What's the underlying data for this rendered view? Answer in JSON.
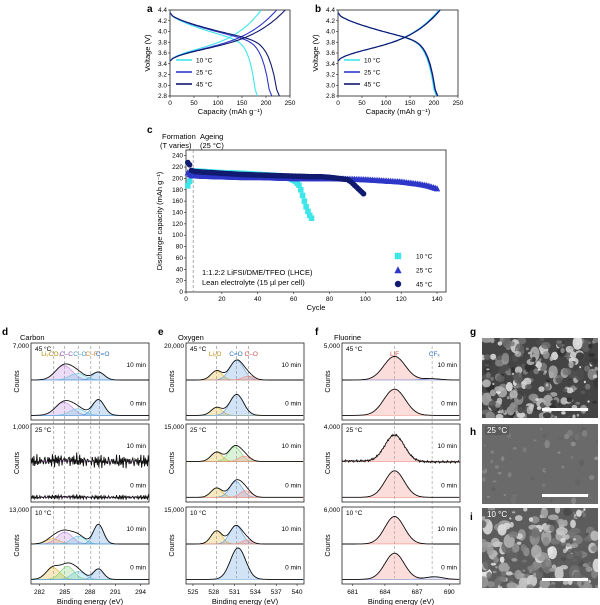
{
  "colors": {
    "c10": "#3ee6ea",
    "c25": "#2e36c8",
    "c45": "#101a6e",
    "lihsi": "#e0b020",
    "lif": "#f08a80",
    "cf": "#80a0e0",
    "co": "#6cc6e0",
    "ceqo": "#5a9ad8",
    "cc": "#c080e0",
    "dash": "#888888"
  },
  "panel_labels": {
    "a": "a",
    "b": "b",
    "c": "c",
    "d": "d",
    "e": "e",
    "f": "f",
    "g": "g",
    "h": "h",
    "i": "i"
  },
  "temps": {
    "t10": "10 °C",
    "t25": "25 °C",
    "t45": "45 °C"
  },
  "panel_c": {
    "formation": "Formation",
    "formation_sub": "(T varies)",
    "ageing": "Ageing",
    "ageing_sub": "(25 °C)",
    "note1": "1:1.2:2 LiFSI/DME/TFEO (LHCE)",
    "note2": "Lean electrolyte (15 µl per cell)"
  },
  "xps": {
    "carbon": "Carbon",
    "oxygen": "Oxygen",
    "fluorine": "Fluorine",
    "t10min": "10 min",
    "t0min": "0 min",
    "xlabel": "Binding energy (eV)",
    "ylabel": "Counts",
    "carbon_peaks": {
      "li2co3": "Li₂CO₃",
      "cc": "C–C",
      "co": "C–O",
      "cf": "C–F",
      "ceqo": "C=O"
    },
    "oxygen_peaks": {
      "li2o": "Li₂O",
      "ceqo": "C=O",
      "co": "C–O"
    },
    "fluorine_peaks": {
      "lif": "LiF",
      "cfx": "CFₓ"
    },
    "carbon_max": [
      "7,000",
      "1,000",
      "13,000"
    ],
    "oxygen_max": [
      "20,000",
      "15,000",
      "15,000"
    ],
    "fluorine_max": [
      "5,000",
      "4,000",
      "6,000"
    ]
  },
  "sem": {
    "h": "25 °C",
    "i": "10 °C"
  },
  "chart_data": [
    {
      "panel": "a",
      "type": "line",
      "xlabel": "Capacity (mAh g⁻¹)",
      "ylabel": "Voltage (V)",
      "xlim": [
        0,
        250
      ],
      "ylim": [
        2.8,
        4.4
      ],
      "xticks": [
        "0",
        "50",
        "100",
        "150",
        "200",
        "250"
      ],
      "yticks": [
        "2.8",
        "3.0",
        "3.2",
        "3.4",
        "3.6",
        "3.8",
        "4.0",
        "4.2",
        "4.4"
      ],
      "series": [
        {
          "name": "10 °C",
          "charge_end": 190,
          "discharge_end": 182
        },
        {
          "name": "25 °C",
          "charge_end": 222,
          "discharge_end": 212
        },
        {
          "name": "45 °C",
          "charge_end": 240,
          "discharge_end": 228
        }
      ]
    },
    {
      "panel": "b",
      "type": "line",
      "xlabel": "Capacity (mAh g⁻¹)",
      "ylabel": "Voltage (V)",
      "xlim": [
        0,
        250
      ],
      "ylim": [
        2.8,
        4.4
      ],
      "xticks": [
        "0",
        "50",
        "100",
        "150",
        "200",
        "250"
      ],
      "yticks": [
        "2.8",
        "3.0",
        "3.2",
        "3.4",
        "3.6",
        "3.8",
        "4.0",
        "4.2",
        "4.4"
      ],
      "series": [
        {
          "name": "10 °C",
          "charge_end": 210,
          "discharge_end": 205
        },
        {
          "name": "25 °C",
          "charge_end": 212,
          "discharge_end": 207
        },
        {
          "name": "45 °C",
          "charge_end": 213,
          "discharge_end": 208
        }
      ]
    },
    {
      "panel": "c",
      "type": "scatter",
      "xlabel": "Cycle",
      "ylabel": "Discharge capacity (mAh g⁻¹)",
      "xlim": [
        0,
        145
      ],
      "ylim": [
        0,
        250
      ],
      "xticks": [
        "0",
        "20",
        "40",
        "60",
        "80",
        "100",
        "120",
        "140"
      ],
      "yticks": [
        "0",
        "20",
        "40",
        "60",
        "80",
        "100",
        "120",
        "140",
        "160",
        "180",
        "200",
        "220",
        "240"
      ],
      "series": [
        {
          "name": "10 °C",
          "x": [
            1,
            2,
            3,
            5,
            10,
            20,
            30,
            40,
            50,
            55,
            58,
            61,
            63,
            64,
            65,
            66,
            67,
            68,
            69,
            70
          ],
          "y": [
            187,
            195,
            208,
            213,
            212,
            210,
            209,
            207,
            205,
            203,
            200,
            195,
            188,
            180,
            170,
            160,
            150,
            142,
            135,
            130
          ]
        },
        {
          "name": "25 °C",
          "x": [
            1,
            2,
            3,
            5,
            10,
            20,
            30,
            40,
            50,
            60,
            70,
            80,
            90,
            100,
            110,
            120,
            130,
            135,
            138,
            140
          ],
          "y": [
            210,
            207,
            205,
            205,
            204,
            203,
            202,
            202,
            201,
            200,
            200,
            200,
            199,
            198,
            196,
            194,
            190,
            187,
            184,
            182
          ]
        },
        {
          "name": "45 °C",
          "x": [
            1,
            2,
            3,
            5,
            10,
            20,
            30,
            40,
            50,
            60,
            70,
            75,
            80,
            85,
            90,
            92,
            94,
            96,
            98,
            99
          ],
          "y": [
            228,
            224,
            214,
            212,
            211,
            209,
            207,
            206,
            205,
            204,
            203,
            203,
            202,
            200,
            198,
            194,
            188,
            182,
            176,
            173
          ]
        }
      ]
    }
  ]
}
